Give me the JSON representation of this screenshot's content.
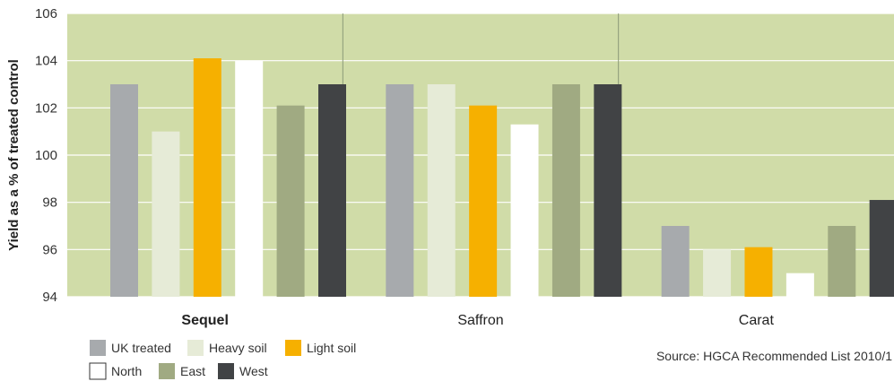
{
  "chart_data": {
    "type": "bar",
    "ylabel": "Yield as a % of treated control",
    "ylim": [
      94,
      106
    ],
    "yticks": [
      94,
      96,
      98,
      100,
      102,
      104,
      106
    ],
    "grid": true,
    "legend_position": "bottom-left",
    "categories": [
      "Sequel",
      "Saffron",
      "Carat"
    ],
    "category_bold": [
      true,
      false,
      false
    ],
    "series": [
      {
        "name": "UK treated",
        "color": "#a7aaad",
        "values": [
          103,
          103,
          97
        ]
      },
      {
        "name": "Heavy soil",
        "color": "#e6ebd7",
        "values": [
          101,
          103,
          96
        ]
      },
      {
        "name": "Light soil",
        "color": "#f6b000",
        "values": [
          104.1,
          102.1,
          96.1
        ]
      },
      {
        "name": "North",
        "color": "#ffffff",
        "values": [
          104,
          101.3,
          95
        ]
      },
      {
        "name": "East",
        "color": "#a0aa82",
        "values": [
          102.1,
          103,
          97
        ]
      },
      {
        "name": "West",
        "color": "#414345",
        "values": [
          103,
          103,
          98.1
        ]
      }
    ],
    "background_color": "#d0dca8",
    "source": "Source: HGCA Recommended List 2010/1"
  }
}
